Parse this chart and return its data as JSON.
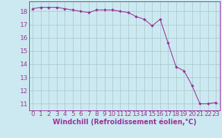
{
  "x_values": [
    0,
    1,
    2,
    3,
    4,
    5,
    6,
    7,
    8,
    9,
    10,
    11,
    12,
    13,
    14,
    15,
    16,
    17,
    18,
    19,
    20,
    21,
    22,
    23
  ],
  "y_values": [
    18.2,
    18.3,
    18.3,
    18.3,
    18.2,
    18.1,
    18.0,
    17.9,
    18.1,
    18.1,
    18.1,
    18.0,
    17.9,
    17.6,
    17.4,
    16.9,
    17.4,
    15.6,
    13.8,
    13.5,
    12.4,
    11.0,
    11.0,
    11.1
  ],
  "line_color": "#993399",
  "marker": "D",
  "marker_size": 2.0,
  "bg_color": "#cce8f0",
  "grid_color": "#aacccc",
  "xlabel": "Windchill (Refroidissement éolien,°C)",
  "xlabel_color": "#993399",
  "tick_color": "#993399",
  "spine_color": "#993399",
  "ylim": [
    10.5,
    18.75
  ],
  "xlim": [
    -0.5,
    23.5
  ],
  "yticks": [
    11,
    12,
    13,
    14,
    15,
    16,
    17,
    18
  ],
  "xticks": [
    0,
    1,
    2,
    3,
    4,
    5,
    6,
    7,
    8,
    9,
    10,
    11,
    12,
    13,
    14,
    15,
    16,
    17,
    18,
    19,
    20,
    21,
    22,
    23
  ],
  "tick_fontsize": 6.5,
  "label_fontsize": 7.0,
  "linewidth": 0.8
}
